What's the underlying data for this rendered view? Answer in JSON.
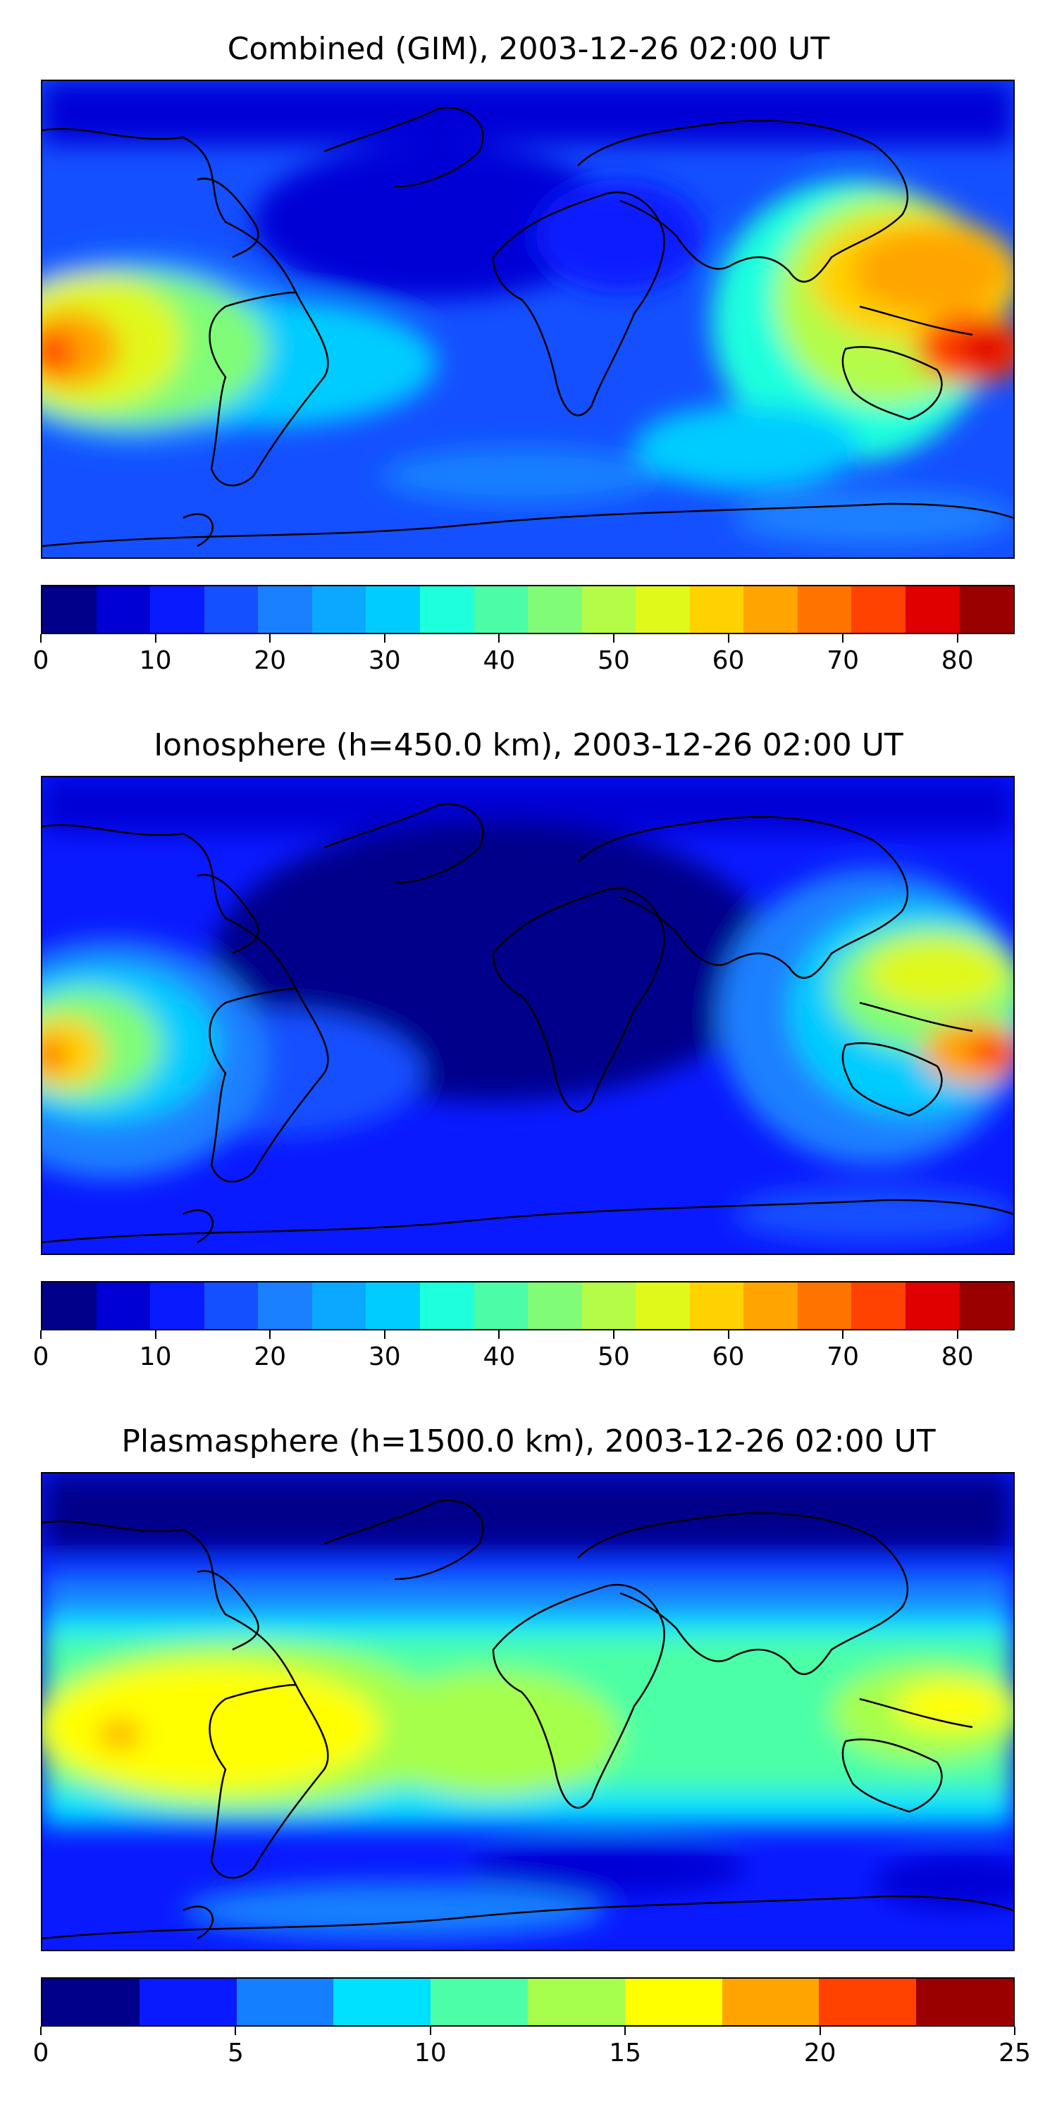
{
  "panels": [
    {
      "id": "combined",
      "title": "Combined (GIM), 2003-12-26 02:00 UT",
      "colorbar": {
        "min": 0,
        "max": 85,
        "tick_values": [
          0,
          10,
          20,
          30,
          40,
          50,
          60,
          70,
          80
        ],
        "tick_labels": [
          "0",
          "10",
          "20",
          "30",
          "40",
          "50",
          "60",
          "70",
          "80"
        ],
        "level_colors": [
          "#00008b",
          "#0000d5",
          "#0a1aff",
          "#1450ff",
          "#1a80ff",
          "#0aa8ff",
          "#00ccff",
          "#1effdd",
          "#4cfca6",
          "#80fc78",
          "#b4fc48",
          "#e0f81a",
          "#ffd200",
          "#ffa400",
          "#ff7400",
          "#ff4200",
          "#e00000",
          "#9b0000"
        ]
      }
    },
    {
      "id": "ionosphere",
      "title": "Ionosphere  (h=450.0 km), 2003-12-26 02:00 UT",
      "colorbar": {
        "min": 0,
        "max": 85,
        "tick_values": [
          0,
          10,
          20,
          30,
          40,
          50,
          60,
          70,
          80
        ],
        "tick_labels": [
          "0",
          "10",
          "20",
          "30",
          "40",
          "50",
          "60",
          "70",
          "80"
        ],
        "level_colors": [
          "#00008b",
          "#0000d5",
          "#0a1aff",
          "#1450ff",
          "#1a80ff",
          "#0aa8ff",
          "#00ccff",
          "#1effdd",
          "#4cfca6",
          "#80fc78",
          "#b4fc48",
          "#e0f81a",
          "#ffd200",
          "#ffa400",
          "#ff7400",
          "#ff4200",
          "#e00000",
          "#9b0000"
        ]
      }
    },
    {
      "id": "plasmasphere",
      "title": "Plasmasphere (h=1500.0 km), 2003-12-26 02:00 UT",
      "colorbar": {
        "min": 0,
        "max": 25,
        "tick_values": [
          0,
          5,
          10,
          15,
          20,
          25
        ],
        "tick_labels": [
          "0",
          "5",
          "10",
          "15",
          "20",
          "25"
        ],
        "level_colors": [
          "#00008b",
          "#0a1aff",
          "#1480ff",
          "#00e0ff",
          "#4cffa6",
          "#a6ff4c",
          "#ffff00",
          "#ffa400",
          "#ff4200",
          "#9b0000"
        ]
      }
    }
  ]
}
